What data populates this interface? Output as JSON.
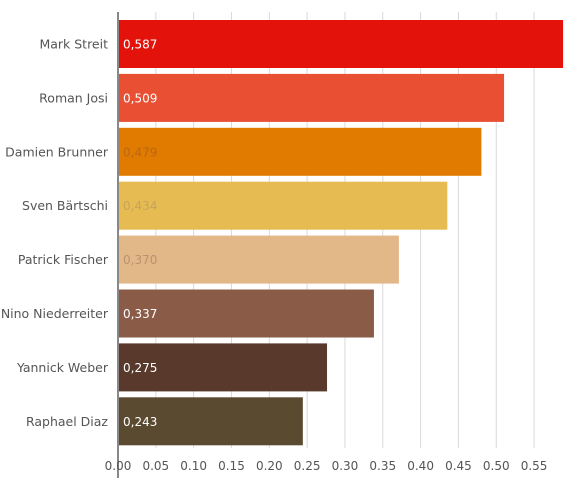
{
  "chart_data": {
    "type": "bar",
    "orientation": "horizontal",
    "categories": [
      "Mark Streit",
      "Roman Josi",
      "Damien Brunner",
      "Sven Bärtschi",
      "Patrick Fischer",
      "Nino Niederreiter",
      "Yannick Weber",
      "Raphael Diaz"
    ],
    "values": [
      0.587,
      0.509,
      0.479,
      0.434,
      0.37,
      0.337,
      0.275,
      0.243
    ],
    "value_labels": [
      "0,587",
      "0,509",
      "0,479",
      "0,434",
      "0,370",
      "0,337",
      "0,275",
      "0,243"
    ],
    "bar_colors": [
      "#e3120b",
      "#e84f33",
      "#e07b00",
      "#e5bb52",
      "#e3b889",
      "#8a5c48",
      "#58392b",
      "#5a4a30"
    ],
    "value_label_colors": [
      "#ffffff",
      "#ffffff",
      "#b9661a",
      "#c7a35c",
      "#ba9270",
      "#ffffff",
      "#ffffff",
      "#ffffff"
    ],
    "x_ticks": [
      "0.00",
      "0.05",
      "0.10",
      "0.15",
      "0.20",
      "0.25",
      "0.30",
      "0.35",
      "0.40",
      "0.45",
      "0.50",
      "0.55"
    ],
    "xlim": [
      0,
      0.6
    ],
    "grid": true,
    "title": "",
    "xlabel": "",
    "ylabel": ""
  }
}
